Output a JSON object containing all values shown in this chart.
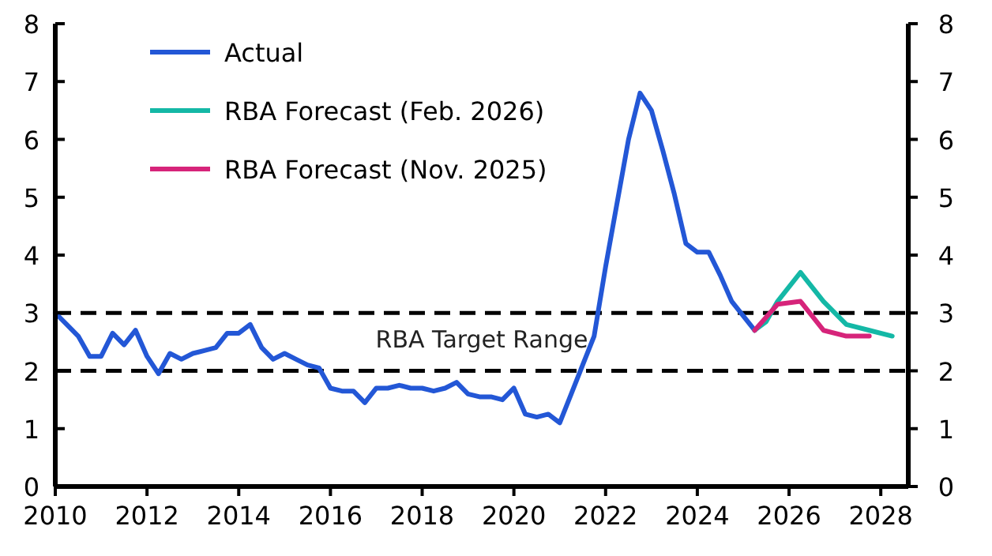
{
  "chart_data": {
    "type": "line",
    "legend": "top left",
    "grid": false,
    "line_style": "solid",
    "marker": "none",
    "xlim": [
      2010,
      2028.6
    ],
    "xticks": [
      2010,
      2012,
      2014,
      2016,
      2018,
      2020,
      2022,
      2024,
      2026,
      2028
    ],
    "ylim": [
      0,
      8
    ],
    "yticks": [
      0,
      1,
      2,
      3,
      4,
      5,
      6,
      7,
      8
    ],
    "y2lim": [
      0,
      8
    ],
    "y2ticks": [
      0,
      1,
      2,
      3,
      4,
      5,
      6,
      7,
      8
    ],
    "ref_lines": [
      {
        "axis": "y",
        "value": 3,
        "line_style": "dashed",
        "color": "#000000"
      },
      {
        "axis": "y",
        "value": 2,
        "line_style": "dashed",
        "color": "#000000"
      }
    ],
    "annotations": [
      "RBA Target Range"
    ],
    "series": [
      {
        "name": "Actual",
        "color": "#2357d6",
        "x": [
          2010,
          2010.25,
          2010.5,
          2010.75,
          2011,
          2011.25,
          2011.5,
          2011.75,
          2012,
          2012.25,
          2012.5,
          2012.75,
          2013,
          2013.25,
          2013.5,
          2013.75,
          2014,
          2014.25,
          2014.5,
          2014.75,
          2015,
          2015.25,
          2015.5,
          2015.75,
          2016,
          2016.25,
          2016.5,
          2016.75,
          2017,
          2017.25,
          2017.5,
          2017.75,
          2018,
          2018.25,
          2018.5,
          2018.75,
          2019,
          2019.25,
          2019.5,
          2019.75,
          2020,
          2020.25,
          2020.5,
          2020.75,
          2021,
          2021.25,
          2021.5,
          2021.75,
          2022,
          2022.25,
          2022.5,
          2022.75,
          2023,
          2023.25,
          2023.5,
          2023.75,
          2024,
          2024.25,
          2024.5,
          2024.75,
          2025,
          2025.25
        ],
        "values": [
          3.0,
          2.8,
          2.6,
          2.25,
          2.25,
          2.65,
          2.45,
          2.7,
          2.25,
          1.95,
          2.3,
          2.2,
          2.3,
          2.35,
          2.4,
          2.65,
          2.65,
          2.8,
          2.4,
          2.2,
          2.3,
          2.2,
          2.1,
          2.05,
          1.7,
          1.65,
          1.65,
          1.45,
          1.7,
          1.7,
          1.75,
          1.7,
          1.7,
          1.65,
          1.7,
          1.8,
          1.6,
          1.55,
          1.55,
          1.5,
          1.7,
          1.25,
          1.2,
          1.25,
          1.1,
          1.6,
          2.1,
          2.6,
          3.8,
          4.9,
          6.0,
          6.8,
          6.5,
          5.8,
          5.05,
          4.2,
          4.05,
          4.05,
          3.65,
          3.2,
          2.95,
          2.7
        ]
      },
      {
        "name": "RBA Forecast (Feb. 2026)",
        "color": "#14b8a6",
        "x": [
          2025.25,
          2025.5,
          2025.75,
          2026.25,
          2026.75,
          2027.25,
          2027.75,
          2028.25
        ],
        "values": [
          2.7,
          2.85,
          3.2,
          3.7,
          3.2,
          2.8,
          2.7,
          2.6
        ]
      },
      {
        "name": "RBA Forecast (Nov. 2025)",
        "color": "#d6247a",
        "x": [
          2025.25,
          2025.75,
          2026.25,
          2026.75,
          2027.25,
          2027.75
        ],
        "values": [
          2.7,
          3.15,
          3.2,
          2.7,
          2.6,
          2.6
        ]
      }
    ]
  }
}
